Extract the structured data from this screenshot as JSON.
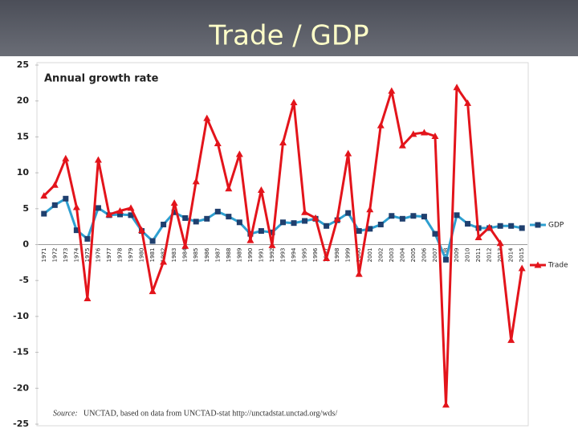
{
  "chart_data": {
    "type": "line",
    "title": "Trade / GDP",
    "subtitle": "Annual growth rate",
    "source_label": "Source:",
    "source": "UNCTAD, based on data from UNCTAD-stat http://unctadstat.unctad.org/wds/",
    "categories": [
      "1971",
      "1972",
      "1973",
      "1974",
      "1975",
      "1976",
      "1977",
      "1978",
      "1979",
      "1980",
      "1981",
      "1982",
      "1983",
      "1984",
      "1985",
      "1986",
      "1987",
      "1988",
      "1989",
      "1990",
      "1991",
      "1992",
      "1993",
      "1994",
      "1995",
      "1996",
      "1997",
      "1998",
      "1999",
      "2000",
      "2001",
      "2002",
      "2003",
      "2004",
      "2005",
      "2006",
      "2007",
      "2008",
      "2009",
      "2010",
      "2011",
      "2012",
      "2013",
      "2014",
      "2015"
    ],
    "series": [
      {
        "name": "GDP",
        "color": "#2e9fd0",
        "marker_color": "#1f3f6e",
        "marker": "square",
        "values": [
          4.3,
          5.5,
          6.4,
          2.0,
          0.8,
          5.1,
          4.1,
          4.2,
          4.1,
          1.9,
          0.5,
          2.8,
          4.5,
          3.7,
          3.2,
          3.6,
          4.6,
          3.9,
          3.1,
          1.5,
          1.9,
          1.7,
          3.1,
          3.0,
          3.3,
          3.6,
          2.6,
          3.4,
          4.4,
          1.9,
          2.2,
          2.8,
          4.0,
          3.6,
          4.0,
          3.9,
          1.5,
          -2.1,
          4.1,
          2.9,
          2.3,
          2.3,
          2.6,
          2.6,
          2.3
        ]
      },
      {
        "name": "Trade",
        "color": "#e3141b",
        "marker_color": "#e3141b",
        "marker": "triangle",
        "values": [
          6.8,
          8.3,
          12.0,
          5.2,
          -7.5,
          11.8,
          4.2,
          4.7,
          5.1,
          2.0,
          -6.5,
          -2.4,
          5.8,
          -0.2,
          8.8,
          17.6,
          14.1,
          7.8,
          12.6,
          0.6,
          7.6,
          -0.1,
          14.2,
          19.8,
          4.5,
          3.7,
          -1.9,
          3.6,
          12.7,
          -4.1,
          4.9,
          16.6,
          21.4,
          13.8,
          15.4,
          15.6,
          15.1,
          -22.3,
          21.9,
          19.7,
          1.0,
          2.4,
          0.2,
          -13.3,
          -3.3
        ]
      }
    ],
    "ylim": [
      -25,
      25
    ],
    "yticks": [
      -25,
      -20,
      -15,
      -10,
      -5,
      0,
      5,
      10,
      15,
      20,
      25
    ],
    "grid": false,
    "legend": "right"
  }
}
